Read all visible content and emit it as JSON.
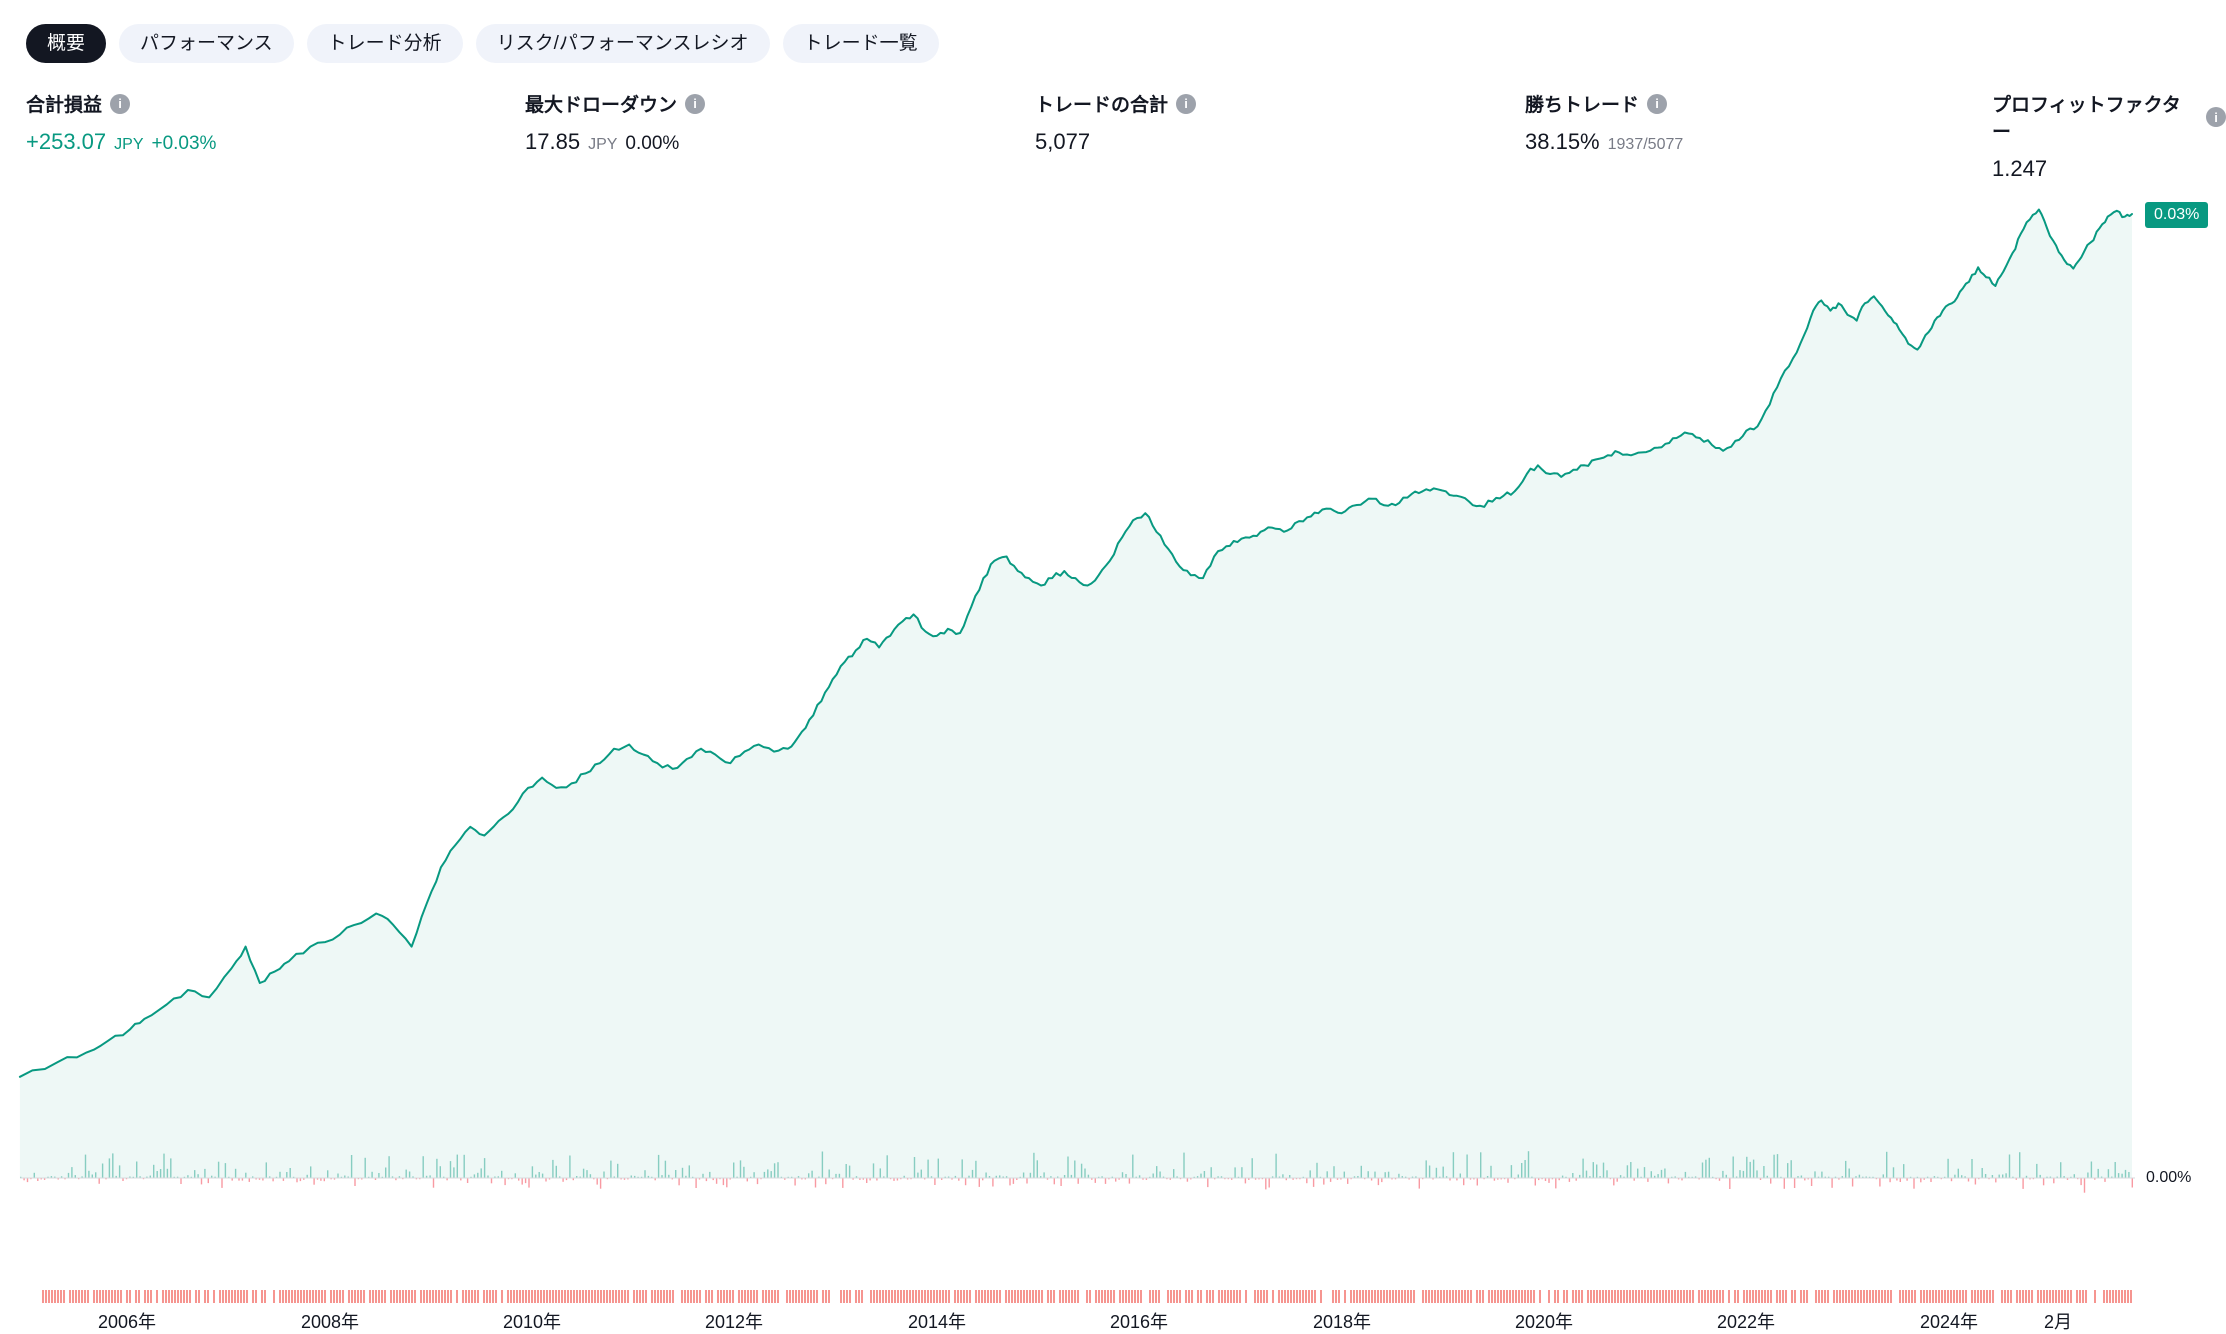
{
  "colors": {
    "accent_green": "#089981",
    "accent_red": "#f23645",
    "text": "#131722",
    "muted": "#787b86",
    "tab_active_bg": "#131722",
    "tab_bg": "#f0f3fa"
  },
  "icons": {
    "info": "i"
  },
  "tabs": [
    {
      "label": "概要",
      "active": true
    },
    {
      "label": "パフォーマンス",
      "active": false
    },
    {
      "label": "トレード分析",
      "active": false
    },
    {
      "label": "リスク/パフォーマンスレシオ",
      "active": false
    },
    {
      "label": "トレード一覧",
      "active": false
    }
  ],
  "stats": [
    {
      "title": "合計損益",
      "value": "+253.07",
      "currency": "JPY",
      "extra": "+0.03%"
    },
    {
      "title": "最大ドローダウン",
      "value": "17.85",
      "currency": "JPY",
      "extra": "0.00%"
    },
    {
      "title": "トレードの合計",
      "value": "5,077"
    },
    {
      "title": "勝ちトレード",
      "value": "38.15%",
      "extra": "1937/5077"
    },
    {
      "title": "プロフィットファクター",
      "value": "1.247"
    }
  ],
  "chart": {
    "current_badge": "0.03%",
    "baseline_label": "0.00%"
  },
  "chart_data": {
    "type": "area",
    "title": "",
    "unit": "%",
    "xlim": [
      2004.9,
      2025.85
    ],
    "ylim": [
      0,
      0.032
    ],
    "grid": false,
    "right_axis_labels": [
      "0.03%",
      "0.00%"
    ],
    "x_ticks": [
      {
        "year": 2006,
        "label": "2006年"
      },
      {
        "year": 2008,
        "label": "2008年"
      },
      {
        "year": 2010,
        "label": "2010年"
      },
      {
        "year": 2012,
        "label": "2012年"
      },
      {
        "year": 2014,
        "label": "2014年"
      },
      {
        "year": 2016,
        "label": "2016年"
      },
      {
        "year": 2018,
        "label": "2018年"
      },
      {
        "year": 2020,
        "label": "2020年"
      },
      {
        "year": 2022,
        "label": "2022年"
      },
      {
        "year": 2024,
        "label": "2024年"
      },
      {
        "year": 2025.08,
        "label": "2月"
      }
    ],
    "colors": {
      "line": "#089981",
      "fill": "rgba(8,153,129,0.07)",
      "up_bar": "rgba(8,153,129,0.45)",
      "down_bar": "rgba(242,54,69,0.5)"
    },
    "series": [
      {
        "name": "cumulative_profit_pct",
        "points": [
          [
            2004.94,
            0.00315
          ],
          [
            2005.31,
            0.0036
          ],
          [
            2005.6,
            0.00391
          ],
          [
            2005.81,
            0.00427
          ],
          [
            2006.03,
            0.00463
          ],
          [
            2006.17,
            0.00495
          ],
          [
            2006.39,
            0.0054
          ],
          [
            2006.6,
            0.00585
          ],
          [
            2006.81,
            0.00562
          ],
          [
            2007.03,
            0.00652
          ],
          [
            2007.17,
            0.0072
          ],
          [
            2007.31,
            0.00607
          ],
          [
            2007.46,
            0.00643
          ],
          [
            2007.6,
            0.00675
          ],
          [
            2007.81,
            0.0072
          ],
          [
            2008.03,
            0.00742
          ],
          [
            2008.24,
            0.00787
          ],
          [
            2008.46,
            0.00823
          ],
          [
            2008.63,
            0.00787
          ],
          [
            2008.81,
            0.0072
          ],
          [
            2008.96,
            0.00855
          ],
          [
            2009.1,
            0.00967
          ],
          [
            2009.24,
            0.01035
          ],
          [
            2009.39,
            0.01093
          ],
          [
            2009.53,
            0.01066
          ],
          [
            2009.67,
            0.01111
          ],
          [
            2009.81,
            0.01147
          ],
          [
            2009.96,
            0.01214
          ],
          [
            2010.1,
            0.01246
          ],
          [
            2010.24,
            0.01214
          ],
          [
            2010.39,
            0.01228
          ],
          [
            2010.53,
            0.01259
          ],
          [
            2010.67,
            0.01291
          ],
          [
            2010.81,
            0.01336
          ],
          [
            2010.96,
            0.01349
          ],
          [
            2011.1,
            0.01318
          ],
          [
            2011.24,
            0.01291
          ],
          [
            2011.39,
            0.01273
          ],
          [
            2011.53,
            0.01304
          ],
          [
            2011.67,
            0.01336
          ],
          [
            2011.81,
            0.01318
          ],
          [
            2011.96,
            0.01291
          ],
          [
            2012.1,
            0.01327
          ],
          [
            2012.24,
            0.01349
          ],
          [
            2012.39,
            0.01327
          ],
          [
            2012.53,
            0.01336
          ],
          [
            2012.63,
            0.01372
          ],
          [
            2012.74,
            0.01426
          ],
          [
            2012.86,
            0.01484
          ],
          [
            2012.97,
            0.01552
          ],
          [
            2013.09,
            0.01606
          ],
          [
            2013.2,
            0.01642
          ],
          [
            2013.31,
            0.01678
          ],
          [
            2013.43,
            0.01651
          ],
          [
            2013.54,
            0.01687
          ],
          [
            2013.66,
            0.01732
          ],
          [
            2013.77,
            0.01754
          ],
          [
            2013.89,
            0.017
          ],
          [
            2014.0,
            0.01687
          ],
          [
            2014.11,
            0.01709
          ],
          [
            2014.23,
            0.01696
          ],
          [
            2014.34,
            0.01777
          ],
          [
            2014.46,
            0.01867
          ],
          [
            2014.57,
            0.01921
          ],
          [
            2014.69,
            0.01934
          ],
          [
            2014.8,
            0.01889
          ],
          [
            2014.91,
            0.01867
          ],
          [
            2015.03,
            0.01844
          ],
          [
            2015.14,
            0.01867
          ],
          [
            2015.26,
            0.01889
          ],
          [
            2015.37,
            0.01867
          ],
          [
            2015.49,
            0.01844
          ],
          [
            2015.6,
            0.01876
          ],
          [
            2015.71,
            0.01921
          ],
          [
            2015.83,
            0.01993
          ],
          [
            2015.94,
            0.02047
          ],
          [
            2016.06,
            0.02069
          ],
          [
            2016.17,
            0.02011
          ],
          [
            2016.29,
            0.01957
          ],
          [
            2016.4,
            0.01903
          ],
          [
            2016.51,
            0.01876
          ],
          [
            2016.63,
            0.01867
          ],
          [
            2016.74,
            0.01934
          ],
          [
            2016.86,
            0.01966
          ],
          [
            2016.97,
            0.01979
          ],
          [
            2017.09,
            0.01993
          ],
          [
            2017.2,
            0.02011
          ],
          [
            2017.31,
            0.02024
          ],
          [
            2017.43,
            0.02011
          ],
          [
            2017.54,
            0.02038
          ],
          [
            2017.66,
            0.02056
          ],
          [
            2017.77,
            0.02069
          ],
          [
            2017.89,
            0.02083
          ],
          [
            2018.0,
            0.02069
          ],
          [
            2018.11,
            0.02092
          ],
          [
            2018.23,
            0.02105
          ],
          [
            2018.34,
            0.02114
          ],
          [
            2018.46,
            0.02092
          ],
          [
            2018.57,
            0.02101
          ],
          [
            2018.69,
            0.02128
          ],
          [
            2018.8,
            0.02137
          ],
          [
            2018.91,
            0.02146
          ],
          [
            2019.03,
            0.02137
          ],
          [
            2019.14,
            0.02123
          ],
          [
            2019.26,
            0.02105
          ],
          [
            2019.37,
            0.02092
          ],
          [
            2019.49,
            0.02105
          ],
          [
            2019.6,
            0.02123
          ],
          [
            2019.71,
            0.02137
          ],
          [
            2019.83,
            0.02191
          ],
          [
            2019.94,
            0.02218
          ],
          [
            2020.06,
            0.02191
          ],
          [
            2020.17,
            0.02182
          ],
          [
            2020.29,
            0.02204
          ],
          [
            2020.4,
            0.02218
          ],
          [
            2020.51,
            0.02236
          ],
          [
            2020.63,
            0.02249
          ],
          [
            2020.74,
            0.02258
          ],
          [
            2020.86,
            0.02249
          ],
          [
            2020.97,
            0.02258
          ],
          [
            2021.09,
            0.02272
          ],
          [
            2021.2,
            0.02285
          ],
          [
            2021.31,
            0.02303
          ],
          [
            2021.43,
            0.02317
          ],
          [
            2021.54,
            0.02303
          ],
          [
            2021.66,
            0.02281
          ],
          [
            2021.77,
            0.02263
          ],
          [
            2021.89,
            0.02294
          ],
          [
            2022.0,
            0.02326
          ],
          [
            2022.11,
            0.02339
          ],
          [
            2022.23,
            0.02407
          ],
          [
            2022.34,
            0.02488
          ],
          [
            2022.46,
            0.02551
          ],
          [
            2022.57,
            0.02623
          ],
          [
            2022.66,
            0.02699
          ],
          [
            2022.74,
            0.02731
          ],
          [
            2022.83,
            0.02699
          ],
          [
            2022.91,
            0.02722
          ],
          [
            2023.0,
            0.02686
          ],
          [
            2023.09,
            0.02668
          ],
          [
            2023.17,
            0.02722
          ],
          [
            2023.26,
            0.02744
          ],
          [
            2023.34,
            0.02713
          ],
          [
            2023.43,
            0.02677
          ],
          [
            2023.51,
            0.02641
          ],
          [
            2023.6,
            0.02596
          ],
          [
            2023.69,
            0.02578
          ],
          [
            2023.77,
            0.02623
          ],
          [
            2023.86,
            0.02668
          ],
          [
            2023.94,
            0.02699
          ],
          [
            2024.03,
            0.02722
          ],
          [
            2024.11,
            0.02758
          ],
          [
            2024.2,
            0.02789
          ],
          [
            2024.29,
            0.02834
          ],
          [
            2024.37,
            0.02803
          ],
          [
            2024.46,
            0.02776
          ],
          [
            2024.54,
            0.02821
          ],
          [
            2024.63,
            0.02879
          ],
          [
            2024.71,
            0.02938
          ],
          [
            2024.8,
            0.02983
          ],
          [
            2024.89,
            0.03014
          ],
          [
            2024.97,
            0.02956
          ],
          [
            2025.06,
            0.02902
          ],
          [
            2025.14,
            0.02857
          ],
          [
            2025.23,
            0.0283
          ],
          [
            2025.31,
            0.02866
          ],
          [
            2025.4,
            0.02911
          ],
          [
            2025.49,
            0.02956
          ],
          [
            2025.57,
            0.02992
          ],
          [
            2025.66,
            0.0301
          ],
          [
            2025.74,
            0.02992
          ],
          [
            2025.81,
            0.03
          ]
        ]
      }
    ],
    "histogram": {
      "seed": 12,
      "bars": 620,
      "up_frac": 0.6,
      "max_up": 0.0008,
      "max_down": 0.00032
    },
    "trade_markers": {
      "seed": 5,
      "density": 0.82,
      "color": "#f5827d"
    },
    "render": {
      "jitter": 2.6,
      "jitter_seed": 9
    }
  }
}
